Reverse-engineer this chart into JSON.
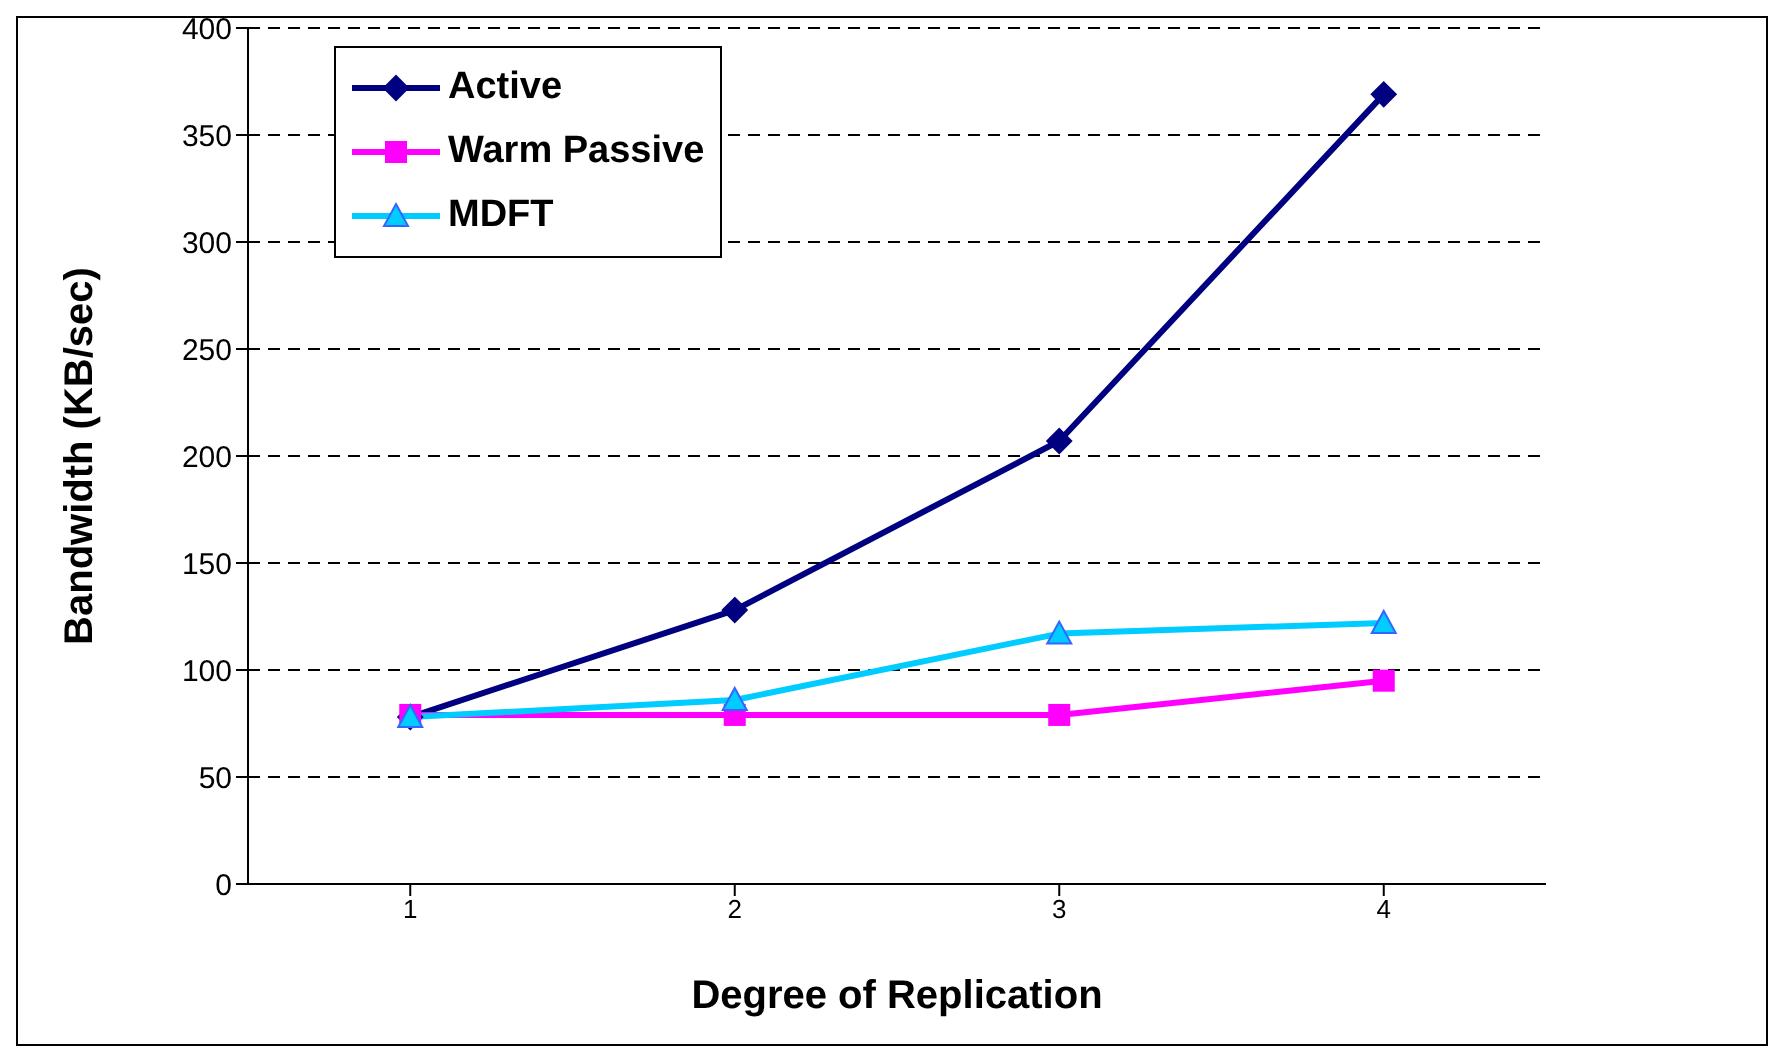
{
  "chart_data": {
    "type": "line",
    "xlabel": "Degree of Replication",
    "ylabel": "Bandwidth (KB/sec)",
    "categories": [
      "1",
      "2",
      "3",
      "4"
    ],
    "series": [
      {
        "name": "Active",
        "color": "#000080",
        "marker": "diamond",
        "values": [
          78,
          128,
          207,
          369
        ]
      },
      {
        "name": "Warm Passive",
        "color": "#ff00ff",
        "marker": "square",
        "values": [
          79,
          79,
          79,
          95
        ]
      },
      {
        "name": "MDFT",
        "color": "#00ccff",
        "marker": "triangle",
        "values": [
          78,
          86,
          117,
          122
        ]
      }
    ],
    "ylim": [
      0,
      400
    ],
    "yticks": [
      0,
      50,
      100,
      150,
      200,
      250,
      300,
      350,
      400
    ],
    "grid": "y",
    "legend": "top left",
    "line_style": "solid"
  }
}
